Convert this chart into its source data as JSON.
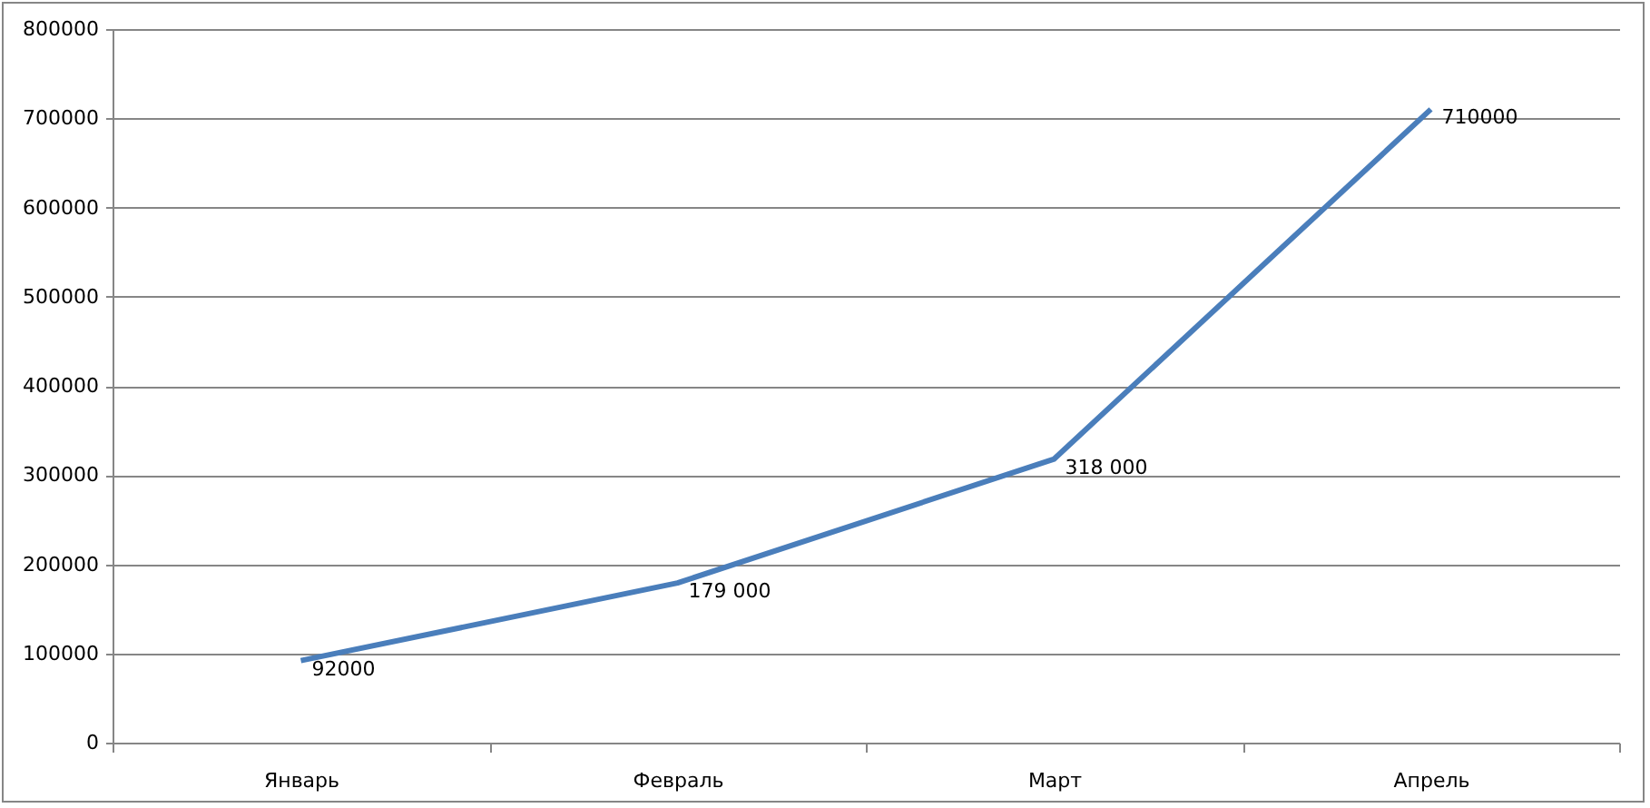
{
  "chart_data": {
    "type": "line",
    "categories": [
      "Январь",
      "Февраль",
      "Март",
      "Апрель"
    ],
    "series": [
      {
        "color": "#4a7ebb",
        "values": [
          92000,
          179000,
          318000,
          710000
        ],
        "value_labels": [
          "92000",
          "179 000",
          "318 000",
          "710000"
        ]
      }
    ],
    "ylim": [
      0,
      800000
    ],
    "yticks": [
      0,
      100000,
      200000,
      300000,
      400000,
      500000,
      600000,
      700000,
      800000
    ],
    "grid": "y",
    "marker": "none",
    "line_style": "solid"
  }
}
